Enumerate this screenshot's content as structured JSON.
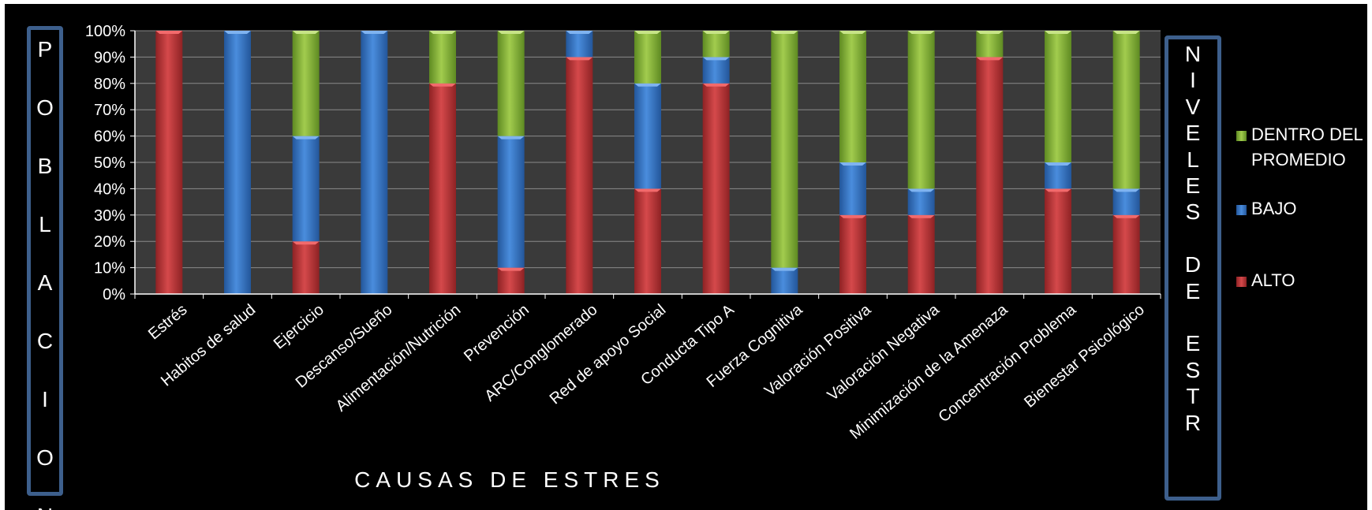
{
  "chart_data": {
    "type": "bar",
    "stacked": "percent",
    "categories": [
      "Estrés",
      "Habitos de salud",
      "Ejercicio",
      "Descanso/Sueño",
      "Alimentación/Nutrición",
      "Prevención",
      "ARC/Conglomerado",
      "Red de apoyo Social",
      "Conducta Tipo A",
      "Fuerza Cognitiva",
      "Valoración Positiva",
      "Valoración Negativa",
      "Minimización de la Amenaza",
      "Concentración Problema",
      "Bienestar Psicológico"
    ],
    "series": [
      {
        "name": "ALTO",
        "color": "#c0393b",
        "values": [
          100,
          0,
          20,
          0,
          80,
          10,
          90,
          40,
          80,
          0,
          30,
          30,
          90,
          40,
          30
        ]
      },
      {
        "name": "BAJO",
        "color": "#3f7fcf",
        "values": [
          0,
          100,
          40,
          100,
          0,
          50,
          10,
          40,
          10,
          10,
          20,
          10,
          0,
          10,
          10
        ]
      },
      {
        "name": "DENTRO DEL PROMEDIO",
        "color": "#8fbc3c",
        "values": [
          0,
          0,
          40,
          0,
          20,
          40,
          0,
          20,
          10,
          90,
          50,
          60,
          10,
          50,
          60
        ]
      }
    ],
    "yticks": [
      "0%",
      "10%",
      "20%",
      "30%",
      "40%",
      "50%",
      "60%",
      "70%",
      "80%",
      "90%",
      "100%"
    ],
    "ylim": [
      0,
      100
    ],
    "xlabel": "CAUSAS DE ESTRES",
    "ylabel": "POBLACION",
    "right_label": "NIVELES DE ESTR",
    "grid": true,
    "legend_position": "right"
  },
  "left_letters": [
    "P",
    "O",
    "B",
    "L",
    "A",
    "C",
    "I",
    "O",
    "N"
  ],
  "right_letters": [
    "N",
    "I",
    "V",
    "E",
    "L",
    "E",
    "S",
    "",
    "D",
    "E",
    "",
    "E",
    "S",
    "T",
    "R"
  ],
  "legend": [
    {
      "label_line1": "DENTRO DEL",
      "label_line2": "PROMEDIO",
      "color": "#8fbc3c"
    },
    {
      "label_line1": "BAJO",
      "label_line2": "",
      "color": "#3f7fcf"
    },
    {
      "label_line1": "ALTO",
      "label_line2": "",
      "color": "#c0393b"
    }
  ]
}
